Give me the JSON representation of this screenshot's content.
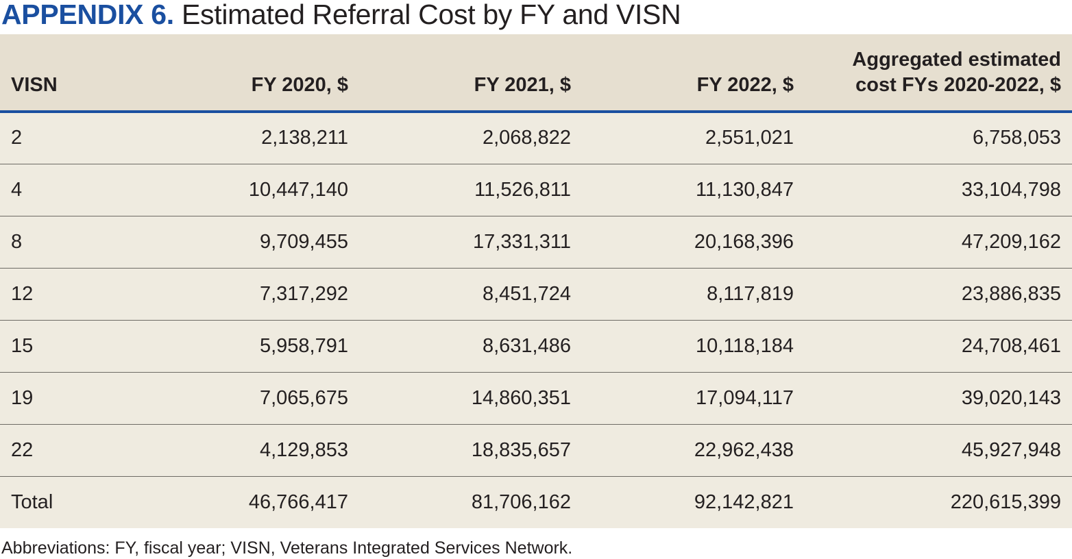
{
  "title": {
    "label": "APPENDIX 6.",
    "text": "Estimated Referral Cost by FY and VISN"
  },
  "table": {
    "headers": {
      "visn": "VISN",
      "fy2020": "FY 2020, $",
      "fy2021": "FY 2021, $",
      "fy2022": "FY 2022, $",
      "aggregated_line1": "Aggregated estimated",
      "aggregated_line2": "cost FYs 2020-2022, $"
    },
    "rows": [
      {
        "visn": "2",
        "fy2020": "2,138,211",
        "fy2021": "2,068,822",
        "fy2022": "2,551,021",
        "aggregated": "6,758,053"
      },
      {
        "visn": "4",
        "fy2020": "10,447,140",
        "fy2021": "11,526,811",
        "fy2022": "11,130,847",
        "aggregated": "33,104,798"
      },
      {
        "visn": "8",
        "fy2020": "9,709,455",
        "fy2021": "17,331,311",
        "fy2022": "20,168,396",
        "aggregated": "47,209,162"
      },
      {
        "visn": "12",
        "fy2020": "7,317,292",
        "fy2021": "8,451,724",
        "fy2022": "8,117,819",
        "aggregated": "23,886,835"
      },
      {
        "visn": "15",
        "fy2020": "5,958,791",
        "fy2021": "8,631,486",
        "fy2022": "10,118,184",
        "aggregated": "24,708,461"
      },
      {
        "visn": "19",
        "fy2020": "7,065,675",
        "fy2021": "14,860,351",
        "fy2022": "17,094,117",
        "aggregated": "39,020,143"
      },
      {
        "visn": "22",
        "fy2020": "4,129,853",
        "fy2021": "18,835,657",
        "fy2022": "22,962,438",
        "aggregated": "45,927,948"
      },
      {
        "visn": "Total",
        "fy2020": "46,766,417",
        "fy2021": "81,706,162",
        "fy2022": "92,142,821",
        "aggregated": "220,615,399"
      }
    ]
  },
  "footnote": "Abbreviations: FY, fiscal year; VISN, Veterans Integrated Services Network.",
  "colors": {
    "accent": "#1a4fa0",
    "header_bg": "#e6dfd0",
    "row_bg": "#efebe0",
    "text": "#231f20"
  }
}
